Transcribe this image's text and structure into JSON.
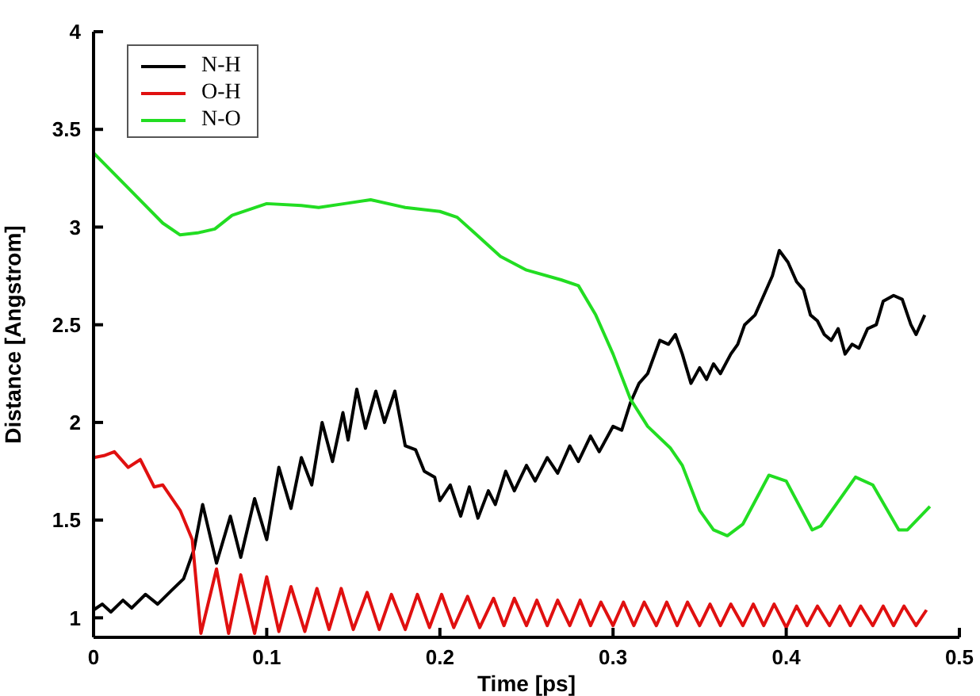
{
  "chart_data": {
    "type": "line",
    "xlabel": "Time [ps]",
    "ylabel": "Distance [Angstrom]",
    "xlim": [
      0,
      0.5
    ],
    "ylim": [
      0.9,
      4
    ],
    "xticks": [
      0,
      0.1,
      0.2,
      0.3,
      0.4,
      0.5
    ],
    "yticks": [
      1,
      1.5,
      2,
      2.5,
      3,
      3.5,
      4
    ],
    "grid": false,
    "legend": "top left",
    "marker": "none",
    "line_style": "solid",
    "series": [
      {
        "name": "N-H",
        "color": "#000000",
        "x": [
          0,
          0.005,
          0.01,
          0.017,
          0.022,
          0.03,
          0.037,
          0.045,
          0.052,
          0.058,
          0.063,
          0.071,
          0.079,
          0.085,
          0.093,
          0.1,
          0.107,
          0.114,
          0.12,
          0.126,
          0.132,
          0.138,
          0.144,
          0.147,
          0.152,
          0.157,
          0.163,
          0.168,
          0.174,
          0.18,
          0.186,
          0.191,
          0.197,
          0.2,
          0.206,
          0.212,
          0.217,
          0.222,
          0.228,
          0.232,
          0.238,
          0.243,
          0.25,
          0.255,
          0.262,
          0.268,
          0.275,
          0.28,
          0.287,
          0.292,
          0.3,
          0.305,
          0.31,
          0.315,
          0.32,
          0.327,
          0.332,
          0.336,
          0.34,
          0.345,
          0.35,
          0.354,
          0.358,
          0.362,
          0.368,
          0.372,
          0.376,
          0.382,
          0.387,
          0.392,
          0.396,
          0.401,
          0.406,
          0.41,
          0.414,
          0.418,
          0.422,
          0.426,
          0.43,
          0.434,
          0.438,
          0.442,
          0.447,
          0.452,
          0.456,
          0.462,
          0.467,
          0.472,
          0.475,
          0.48
        ],
        "values": [
          1.04,
          1.07,
          1.03,
          1.09,
          1.05,
          1.12,
          1.07,
          1.14,
          1.2,
          1.35,
          1.58,
          1.28,
          1.52,
          1.31,
          1.61,
          1.4,
          1.77,
          1.56,
          1.82,
          1.68,
          2.0,
          1.8,
          2.05,
          1.91,
          2.17,
          1.97,
          2.16,
          2.0,
          2.16,
          1.88,
          1.86,
          1.75,
          1.72,
          1.6,
          1.68,
          1.52,
          1.67,
          1.51,
          1.65,
          1.58,
          1.75,
          1.65,
          1.78,
          1.7,
          1.82,
          1.74,
          1.88,
          1.8,
          1.93,
          1.85,
          1.98,
          1.96,
          2.1,
          2.2,
          2.25,
          2.42,
          2.4,
          2.45,
          2.35,
          2.2,
          2.28,
          2.22,
          2.3,
          2.25,
          2.35,
          2.4,
          2.5,
          2.55,
          2.65,
          2.75,
          2.88,
          2.82,
          2.72,
          2.68,
          2.55,
          2.52,
          2.45,
          2.42,
          2.48,
          2.35,
          2.4,
          2.38,
          2.48,
          2.5,
          2.62,
          2.65,
          2.63,
          2.5,
          2.45,
          2.55
        ]
      },
      {
        "name": "O-H",
        "color": "#e01010",
        "x": [
          0,
          0.006,
          0.012,
          0.02,
          0.027,
          0.035,
          0.04,
          0.05,
          0.057,
          0.062,
          0.071,
          0.078,
          0.085,
          0.093,
          0.1,
          0.107,
          0.114,
          0.122,
          0.129,
          0.136,
          0.143,
          0.15,
          0.158,
          0.165,
          0.172,
          0.18,
          0.187,
          0.194,
          0.201,
          0.208,
          0.216,
          0.223,
          0.231,
          0.237,
          0.243,
          0.25,
          0.256,
          0.262,
          0.268,
          0.275,
          0.281,
          0.287,
          0.293,
          0.3,
          0.306,
          0.312,
          0.318,
          0.325,
          0.331,
          0.337,
          0.343,
          0.35,
          0.356,
          0.362,
          0.368,
          0.375,
          0.381,
          0.387,
          0.393,
          0.4,
          0.406,
          0.412,
          0.418,
          0.425,
          0.431,
          0.437,
          0.443,
          0.45,
          0.456,
          0.462,
          0.468,
          0.475,
          0.481
        ],
        "values": [
          1.82,
          1.83,
          1.85,
          1.77,
          1.81,
          1.67,
          1.68,
          1.55,
          1.4,
          0.92,
          1.25,
          0.92,
          1.22,
          0.92,
          1.21,
          0.93,
          1.16,
          0.93,
          1.15,
          0.94,
          1.15,
          0.94,
          1.13,
          0.94,
          1.12,
          0.94,
          1.12,
          0.95,
          1.12,
          0.95,
          1.11,
          0.95,
          1.1,
          0.96,
          1.1,
          0.96,
          1.09,
          0.96,
          1.09,
          0.96,
          1.09,
          0.96,
          1.08,
          0.96,
          1.08,
          0.96,
          1.08,
          0.96,
          1.08,
          0.96,
          1.08,
          0.96,
          1.07,
          0.96,
          1.07,
          0.96,
          1.07,
          0.96,
          1.07,
          0.95,
          1.06,
          0.96,
          1.06,
          0.96,
          1.06,
          0.96,
          1.06,
          0.96,
          1.06,
          0.96,
          1.06,
          0.96,
          1.04
        ]
      },
      {
        "name": "N-O",
        "color": "#22dd22",
        "x": [
          0,
          0.02,
          0.04,
          0.05,
          0.06,
          0.07,
          0.08,
          0.1,
          0.12,
          0.13,
          0.145,
          0.16,
          0.18,
          0.2,
          0.21,
          0.22,
          0.235,
          0.25,
          0.27,
          0.28,
          0.29,
          0.3,
          0.31,
          0.32,
          0.333,
          0.34,
          0.35,
          0.358,
          0.366,
          0.375,
          0.39,
          0.4,
          0.415,
          0.42,
          0.44,
          0.45,
          0.465,
          0.47,
          0.483
        ],
        "values": [
          3.38,
          3.2,
          3.02,
          2.96,
          2.97,
          2.99,
          3.06,
          3.12,
          3.11,
          3.1,
          3.12,
          3.14,
          3.1,
          3.08,
          3.05,
          2.97,
          2.85,
          2.78,
          2.73,
          2.7,
          2.55,
          2.35,
          2.12,
          1.98,
          1.87,
          1.78,
          1.55,
          1.45,
          1.42,
          1.48,
          1.73,
          1.7,
          1.45,
          1.47,
          1.72,
          1.68,
          1.45,
          1.45,
          1.57
        ]
      }
    ]
  }
}
